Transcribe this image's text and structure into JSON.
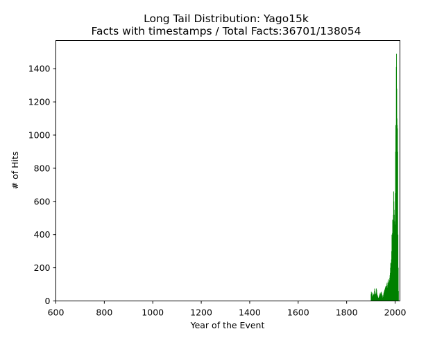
{
  "chart_data": {
    "type": "bar",
    "title": "Long Tail Distribution: Yago15k",
    "subtitle": "Facts with timestamps / Total Facts:36701/138054",
    "xlabel": "Year of the Event",
    "ylabel": "# of Hits",
    "xlim": [
      600,
      2020
    ],
    "ylim": [
      0,
      1570
    ],
    "xticks": [
      600,
      800,
      1000,
      1200,
      1400,
      1600,
      1800,
      2000
    ],
    "yticks": [
      0,
      200,
      400,
      600,
      800,
      1000,
      1200,
      1400
    ],
    "grid": false,
    "bar_color": "#008000",
    "series": [
      {
        "x": [
          1900,
          1901,
          1902,
          1903,
          1904,
          1905,
          1906,
          1907,
          1908,
          1909,
          1910,
          1911,
          1912,
          1913,
          1914,
          1915,
          1916,
          1917,
          1918,
          1919,
          1920,
          1921,
          1922,
          1923,
          1924,
          1925,
          1926,
          1927,
          1928,
          1929,
          1930,
          1931,
          1932,
          1933,
          1934,
          1935,
          1936,
          1937,
          1938,
          1939,
          1940,
          1941,
          1942,
          1943,
          1944,
          1945,
          1946,
          1947,
          1948,
          1949,
          1950,
          1951,
          1952,
          1953,
          1954,
          1955,
          1956,
          1957,
          1958,
          1959,
          1960,
          1961,
          1962,
          1963,
          1964,
          1965,
          1966,
          1967,
          1968,
          1969,
          1970,
          1971,
          1972,
          1973,
          1974,
          1975,
          1976,
          1977,
          1978,
          1979,
          1980,
          1981,
          1982,
          1983,
          1984,
          1985,
          1986,
          1987,
          1988,
          1989,
          1990,
          1991,
          1992,
          1993,
          1994,
          1995,
          1996,
          1997,
          1998,
          1999,
          2000,
          2001,
          2002,
          2003,
          2004,
          2005,
          2006,
          2007,
          2008,
          2009,
          2010,
          2011,
          2012,
          2013
        ],
        "values": [
          40,
          55,
          45,
          35,
          25,
          20,
          30,
          45,
          50,
          40,
          25,
          35,
          40,
          30,
          60,
          75,
          70,
          55,
          45,
          40,
          30,
          45,
          75,
          65,
          50,
          40,
          35,
          30,
          25,
          20,
          15,
          18,
          20,
          25,
          30,
          35,
          40,
          45,
          50,
          42,
          25,
          30,
          55,
          50,
          45,
          40,
          35,
          30,
          20,
          18,
          25,
          35,
          45,
          50,
          55,
          60,
          65,
          70,
          75,
          80,
          85,
          90,
          80,
          70,
          90,
          100,
          110,
          95,
          80,
          70,
          120,
          130,
          115,
          100,
          105,
          110,
          125,
          140,
          155,
          170,
          200,
          230,
          225,
          210,
          250,
          300,
          400,
          380,
          410,
          490,
          450,
          480,
          520,
          660,
          600,
          550,
          520,
          480,
          460,
          440,
          650,
          900,
          1060,
          1000,
          1410,
          1490,
          1280,
          1100,
          1060,
          1040,
          900,
          400,
          200,
          60
        ]
      }
    ]
  }
}
